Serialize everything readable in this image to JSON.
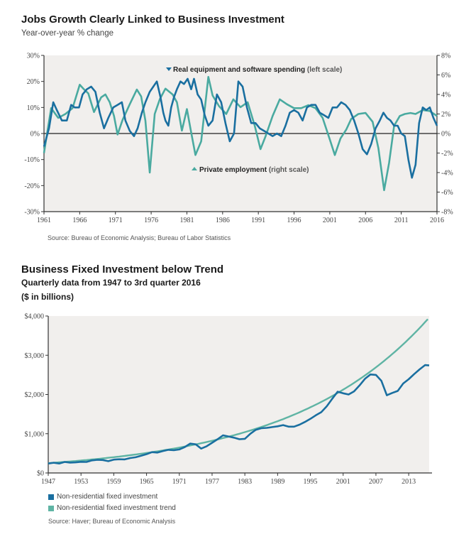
{
  "chart_data": [
    {
      "type": "line",
      "title": "Jobs Growth Clearly Linked to Business Investment",
      "subtitle": "Year-over-year % change",
      "xlabel": "",
      "ylabel_left": "",
      "ylabel_right": "",
      "xlim": [
        1961,
        2016
      ],
      "ylim_left": [
        -30,
        30
      ],
      "ylim_right": [
        -8,
        8
      ],
      "x_ticks": [
        "1961",
        "1966",
        "1971",
        "1976",
        "1981",
        "1986",
        "1991",
        "1996",
        "2001",
        "2006",
        "2011",
        "2016"
      ],
      "y_ticks_left": [
        "30%",
        "20%",
        "10%",
        "0%",
        "-10%",
        "-20%",
        "-30%"
      ],
      "y_ticks_right": [
        "8%",
        "6%",
        "4%",
        "2%",
        "0%",
        "-2%",
        "-4%",
        "-6%",
        "-8%"
      ],
      "grid": false,
      "zero_line": true,
      "annotations": [
        {
          "bold": "Real equipment and software spending",
          "normal": " (left scale)",
          "marker": "down-triangle"
        },
        {
          "bold": "Private employment",
          "normal": " (right scale)",
          "marker": "up-triangle"
        }
      ],
      "series": [
        {
          "name": "Real equipment and software spending",
          "axis": "left",
          "color": "#1a6fa0",
          "x": [
            1961,
            1961.7,
            1962.3,
            1962.8,
            1963.5,
            1964.2,
            1964.8,
            1965.3,
            1965.9,
            1966.4,
            1967,
            1967.6,
            1968.2,
            1968.8,
            1969.4,
            1970,
            1970.7,
            1971.3,
            1971.9,
            1972.4,
            1973,
            1973.6,
            1974.1,
            1974.7,
            1975.2,
            1975.8,
            1976.3,
            1976.8,
            1977.3,
            1977.7,
            1978,
            1978.4,
            1978.8,
            1979.2,
            1979.6,
            1980.1,
            1980.6,
            1981.1,
            1981.6,
            1982,
            1982.5,
            1983,
            1983.5,
            1984,
            1984.6,
            1985.2,
            1985.8,
            1986.4,
            1987,
            1987.6,
            1988.2,
            1988.8,
            1989.4,
            1990,
            1990.6,
            1991.2,
            1991.8,
            1992.4,
            1993,
            1993.6,
            1994.2,
            1994.8,
            1995.4,
            1996,
            1996.6,
            1997.2,
            1997.8,
            1998.4,
            1999,
            1999.6,
            2000.2,
            2000.8,
            2001.4,
            2002,
            2002.6,
            2003.2,
            2003.8,
            2004.4,
            2005,
            2005.6,
            2006.2,
            2006.8,
            2007.4,
            2008,
            2008.5,
            2009,
            2009.5,
            2010,
            2010.5,
            2011,
            2011.5,
            2012,
            2012.5,
            2013,
            2013.5,
            2014,
            2014.5,
            2015,
            2015.5,
            2016
          ],
          "y": [
            -5,
            2,
            12,
            9,
            5,
            5,
            11,
            10,
            10,
            15,
            17,
            18,
            16,
            8,
            2,
            6,
            10,
            11,
            12,
            5,
            1,
            -1,
            2,
            8,
            12,
            16,
            18,
            20,
            14,
            8,
            5,
            3,
            10,
            14,
            17,
            20,
            19,
            21,
            17,
            21,
            15,
            13,
            7,
            3,
            5,
            15,
            12,
            4,
            -3,
            0,
            20,
            18,
            10,
            4,
            4,
            2,
            1,
            0,
            -1,
            0,
            -1,
            3,
            8,
            9,
            8,
            5,
            10,
            11,
            11,
            8,
            7,
            6,
            10,
            10,
            12,
            11,
            9,
            5,
            0,
            -6,
            -8,
            -4,
            2,
            5,
            8,
            6,
            5,
            3,
            3,
            0,
            -1,
            -10,
            -17,
            -12,
            4,
            10,
            9,
            10,
            6,
            3
          ]
        },
        {
          "name": "Private employment",
          "axis": "right",
          "color": "#4aaaa0",
          "x": [
            1961,
            1962,
            1963,
            1964,
            1965,
            1966,
            1966.5,
            1967.2,
            1968,
            1969,
            1969.6,
            1970.2,
            1970.8,
            1971.3,
            1972,
            1973,
            1974,
            1974.6,
            1975.2,
            1975.8,
            1976.5,
            1977.2,
            1978,
            1979,
            1979.6,
            1980.3,
            1981,
            1981.5,
            1982.2,
            1983,
            1984,
            1984.6,
            1985.5,
            1986.5,
            1987.5,
            1988.5,
            1989.5,
            1990.5,
            1991.3,
            1992,
            1993,
            1994,
            1995,
            1996,
            1997,
            1998,
            1999,
            2000,
            2001,
            2001.7,
            2002.5,
            2003.3,
            2004,
            2005,
            2006,
            2007,
            2007.8,
            2008.6,
            2009.3,
            2010,
            2010.8,
            2011.5,
            2012.3,
            2013,
            2014,
            2015,
            2016
          ],
          "y": [
            -2,
            2.6,
            1.6,
            2,
            2.6,
            5,
            4.6,
            4.1,
            2.2,
            3.7,
            4,
            3.2,
            1.8,
            -0.1,
            1.4,
            3,
            4.5,
            3.8,
            1.3,
            -4,
            2,
            3.5,
            4.6,
            4,
            3.2,
            0.3,
            2.5,
            0.5,
            -2.2,
            -0.8,
            5.8,
            3.9,
            2.8,
            2,
            3.5,
            2.7,
            3.2,
            0.8,
            -1.6,
            -0.3,
            1.8,
            3.5,
            3,
            2.6,
            2.6,
            2.9,
            2.6,
            1.6,
            -0.6,
            -2.2,
            -0.5,
            0.4,
            1.5,
            2,
            2.1,
            1.2,
            -1.5,
            -5.8,
            -3,
            0.8,
            1.8,
            2,
            2.1,
            2,
            2.4,
            2.3,
            1.8
          ]
        }
      ],
      "source": "Source: Bureau of Economic Analysis; Bureau of Labor Statistics"
    },
    {
      "type": "line",
      "title": "Business Fixed Investment below Trend",
      "subtitle": "Quarterly data from 1947 to 3rd quarter 2016",
      "unit_note": "($ in billions)",
      "xlabel": "",
      "ylabel": "",
      "xlim": [
        1947,
        2016.75
      ],
      "ylim": [
        0,
        4000
      ],
      "x_ticks": [
        "1947",
        "1953",
        "1959",
        "1965",
        "1971",
        "1977",
        "1983",
        "1989",
        "1995",
        "2001",
        "2007",
        "2013"
      ],
      "y_ticks": [
        "$4,000",
        "$3,000",
        "$2,000",
        "$1,000",
        "$0"
      ],
      "grid": false,
      "legend_position": "bottom-left",
      "series": [
        {
          "name": "Non-residential fixed investment",
          "color": "#1a6fa0",
          "x": [
            1947,
            1948,
            1949,
            1950,
            1951,
            1952,
            1953,
            1954,
            1955,
            1956,
            1957,
            1958,
            1959,
            1960,
            1961,
            1962,
            1963,
            1964,
            1965,
            1966,
            1967,
            1968,
            1969,
            1970,
            1971,
            1972,
            1973,
            1974,
            1975,
            1976,
            1977,
            1978,
            1979,
            1980,
            1981,
            1982,
            1983,
            1984,
            1985,
            1986,
            1987,
            1988,
            1989,
            1990,
            1991,
            1992,
            1993,
            1994,
            1995,
            1996,
            1997,
            1998,
            1999,
            2000,
            2001,
            2002,
            2003,
            2004,
            2005,
            2006,
            2007,
            2008,
            2009,
            2010,
            2011,
            2012,
            2013,
            2014,
            2015,
            2016,
            2016.75
          ],
          "y": [
            240,
            260,
            240,
            280,
            265,
            270,
            285,
            280,
            320,
            335,
            330,
            300,
            340,
            350,
            345,
            380,
            400,
            440,
            480,
            530,
            520,
            560,
            590,
            580,
            600,
            660,
            750,
            730,
            620,
            680,
            770,
            860,
            960,
            930,
            900,
            860,
            870,
            1000,
            1100,
            1140,
            1150,
            1170,
            1190,
            1220,
            1180,
            1180,
            1230,
            1300,
            1380,
            1470,
            1550,
            1700,
            1890,
            2070,
            2030,
            2000,
            2080,
            2230,
            2400,
            2510,
            2500,
            2350,
            1980,
            2040,
            2090,
            2280,
            2390,
            2520,
            2640,
            2750,
            2740
          ]
        },
        {
          "name": "Non-residential fixed investment trend",
          "color": "#5fb4a4",
          "model": "exponential trend",
          "x": [
            1947,
            1953,
            1959,
            1965,
            1971,
            1977,
            1983,
            1989,
            1995,
            2001,
            2007,
            2013,
            2016.75
          ],
          "y": [
            250,
            300,
            380,
            480,
            620,
            800,
            1020,
            1310,
            1670,
            2150,
            2700,
            3420,
            3960
          ]
        }
      ],
      "source": "Source: Haver; Bureau of Economic Analysis"
    }
  ],
  "legend": {
    "items": [
      {
        "label": "Non-residential fixed investment",
        "color": "#1a6fa0"
      },
      {
        "label": "Non-residential fixed investment trend",
        "color": "#5fb4a4"
      }
    ]
  },
  "colors": {
    "plot_bg": "#f1efed",
    "axis": "#333333",
    "dark_series": "#1a6fa0",
    "light_series": "#4aaaa0"
  }
}
